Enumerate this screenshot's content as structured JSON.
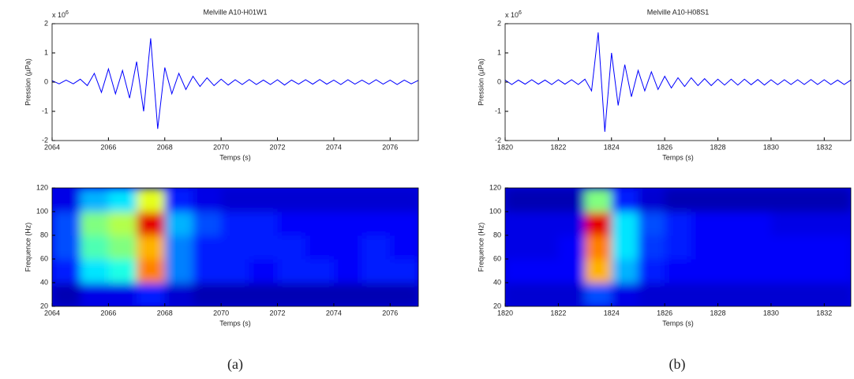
{
  "chart_data": [
    {
      "type": "line",
      "title": "Melville A10-H01W1",
      "xlabel": "Temps (s)",
      "ylabel": "Pression (µPa)",
      "y_multiplier": {
        "label": "x 10",
        "exponent": 6
      },
      "color": "#0000ff",
      "xlim": [
        2064,
        2077
      ],
      "xticks": [
        2064,
        2066,
        2068,
        2070,
        2072,
        2074,
        2076
      ],
      "ylim": [
        -2,
        2
      ],
      "yticks": [
        -2,
        -1,
        0,
        1,
        2
      ],
      "x": [
        2064,
        2064.25,
        2064.5,
        2064.75,
        2065,
        2065.25,
        2065.5,
        2065.75,
        2066,
        2066.25,
        2066.5,
        2066.75,
        2067,
        2067.25,
        2067.5,
        2067.75,
        2068,
        2068.25,
        2068.5,
        2068.75,
        2069,
        2069.25,
        2069.5,
        2069.75,
        2070,
        2070.25,
        2070.5,
        2070.75,
        2071,
        2071.25,
        2071.5,
        2071.75,
        2072,
        2072.25,
        2072.5,
        2072.75,
        2073,
        2073.25,
        2073.5,
        2073.75,
        2074,
        2074.25,
        2074.5,
        2074.75,
        2075,
        2075.25,
        2075.5,
        2075.75,
        2076,
        2076.25,
        2076.5,
        2076.75,
        2077
      ],
      "values": [
        0.05,
        -0.06,
        0.07,
        -0.06,
        0.1,
        -0.12,
        0.3,
        -0.35,
        0.45,
        -0.4,
        0.4,
        -0.55,
        0.7,
        -1.0,
        1.5,
        -1.6,
        0.5,
        -0.4,
        0.3,
        -0.25,
        0.2,
        -0.15,
        0.15,
        -0.12,
        0.1,
        -0.1,
        0.08,
        -0.08,
        0.09,
        -0.08,
        0.07,
        -0.08,
        0.08,
        -0.1,
        0.07,
        -0.07,
        0.08,
        -0.07,
        0.09,
        -0.07,
        0.07,
        -0.08,
        0.08,
        -0.07,
        0.07,
        -0.07,
        0.08,
        -0.07,
        0.07,
        -0.08,
        0.07,
        -0.06,
        0.06
      ]
    },
    {
      "type": "heatmap",
      "xlabel": "Temps (s)",
      "ylabel": "Frequence (Hz)",
      "colormap": "jet",
      "xlim": [
        2064,
        2077
      ],
      "xticks": [
        2064,
        2066,
        2068,
        2070,
        2072,
        2074,
        2076
      ],
      "ylim": [
        20,
        120
      ],
      "yticks": [
        20,
        40,
        60,
        80,
        100,
        120
      ],
      "x_bins": [
        2064,
        2065,
        2066,
        2067,
        2068,
        2069,
        2070,
        2071,
        2072,
        2073,
        2074,
        2075,
        2076,
        2077
      ],
      "y_bins": [
        20,
        40,
        60,
        80,
        100,
        120
      ],
      "values": [
        [
          0.05,
          0.1,
          0.1,
          0.15,
          0.08,
          0.05,
          0.05,
          0.05,
          0.05,
          0.05,
          0.05,
          0.05,
          0.05
        ],
        [
          0.15,
          0.35,
          0.4,
          0.75,
          0.25,
          0.15,
          0.15,
          0.12,
          0.15,
          0.15,
          0.12,
          0.15,
          0.15
        ],
        [
          0.2,
          0.45,
          0.5,
          0.7,
          0.25,
          0.15,
          0.15,
          0.15,
          0.15,
          0.12,
          0.12,
          0.15,
          0.12
        ],
        [
          0.2,
          0.5,
          0.55,
          0.9,
          0.3,
          0.2,
          0.15,
          0.15,
          0.12,
          0.12,
          0.12,
          0.12,
          0.12
        ],
        [
          0.1,
          0.3,
          0.35,
          0.6,
          0.15,
          0.1,
          0.08,
          0.08,
          0.08,
          0.08,
          0.08,
          0.08,
          0.08
        ]
      ]
    },
    {
      "type": "line",
      "title": "Melville A10-H08S1",
      "xlabel": "Temps (s)",
      "ylabel": "Pression (µPa)",
      "y_multiplier": {
        "label": "x 10",
        "exponent": 6
      },
      "color": "#0000ff",
      "xlim": [
        1820,
        1833
      ],
      "xticks": [
        1820,
        1822,
        1824,
        1826,
        1828,
        1830,
        1832
      ],
      "ylim": [
        -2,
        2
      ],
      "yticks": [
        -2,
        -1,
        0,
        1,
        2
      ],
      "x": [
        1820,
        1820.25,
        1820.5,
        1820.75,
        1821,
        1821.25,
        1821.5,
        1821.75,
        1822,
        1822.25,
        1822.5,
        1822.75,
        1823,
        1823.25,
        1823.5,
        1823.75,
        1824,
        1824.25,
        1824.5,
        1824.75,
        1825,
        1825.25,
        1825.5,
        1825.75,
        1826,
        1826.25,
        1826.5,
        1826.75,
        1827,
        1827.25,
        1827.5,
        1827.75,
        1828,
        1828.25,
        1828.5,
        1828.75,
        1829,
        1829.25,
        1829.5,
        1829.75,
        1830,
        1830.25,
        1830.5,
        1830.75,
        1831,
        1831.25,
        1831.5,
        1831.75,
        1832,
        1832.25,
        1832.5,
        1832.75,
        1833
      ],
      "values": [
        0.07,
        -0.08,
        0.07,
        -0.07,
        0.08,
        -0.07,
        0.07,
        -0.08,
        0.08,
        -0.07,
        0.08,
        -0.08,
        0.1,
        -0.3,
        1.7,
        -1.7,
        1.0,
        -0.8,
        0.6,
        -0.5,
        0.4,
        -0.3,
        0.35,
        -0.25,
        0.2,
        -0.2,
        0.15,
        -0.15,
        0.15,
        -0.12,
        0.12,
        -0.12,
        0.1,
        -0.1,
        0.1,
        -0.1,
        0.1,
        -0.09,
        0.09,
        -0.1,
        0.08,
        -0.09,
        0.08,
        -0.08,
        0.08,
        -0.08,
        0.09,
        -0.08,
        0.08,
        -0.08,
        0.07,
        -0.08,
        0.07
      ]
    },
    {
      "type": "heatmap",
      "xlabel": "Temps (s)",
      "ylabel": "Frequence (Hz)",
      "colormap": "jet",
      "xlim": [
        1820,
        1833
      ],
      "xticks": [
        1820,
        1822,
        1824,
        1826,
        1828,
        1830,
        1832
      ],
      "ylim": [
        20,
        120
      ],
      "yticks": [
        20,
        40,
        60,
        80,
        100,
        120
      ],
      "x_bins": [
        1820,
        1821,
        1822,
        1823,
        1824,
        1825,
        1826,
        1827,
        1828,
        1829,
        1830,
        1831,
        1832,
        1833
      ],
      "y_bins": [
        20,
        40,
        60,
        80,
        100,
        120
      ],
      "values": [
        [
          0.08,
          0.08,
          0.08,
          0.2,
          0.1,
          0.08,
          0.08,
          0.08,
          0.08,
          0.08,
          0.08,
          0.08,
          0.08
        ],
        [
          0.12,
          0.12,
          0.12,
          0.7,
          0.3,
          0.15,
          0.12,
          0.12,
          0.12,
          0.12,
          0.12,
          0.12,
          0.12
        ],
        [
          0.1,
          0.1,
          0.12,
          0.75,
          0.35,
          0.18,
          0.15,
          0.12,
          0.12,
          0.12,
          0.12,
          0.12,
          0.12
        ],
        [
          0.1,
          0.1,
          0.1,
          0.9,
          0.35,
          0.2,
          0.15,
          0.12,
          0.12,
          0.12,
          0.1,
          0.1,
          0.1
        ],
        [
          0.05,
          0.05,
          0.05,
          0.5,
          0.15,
          0.08,
          0.05,
          0.05,
          0.05,
          0.05,
          0.05,
          0.05,
          0.05
        ]
      ]
    }
  ],
  "captions": [
    "(a)",
    "(b)"
  ]
}
